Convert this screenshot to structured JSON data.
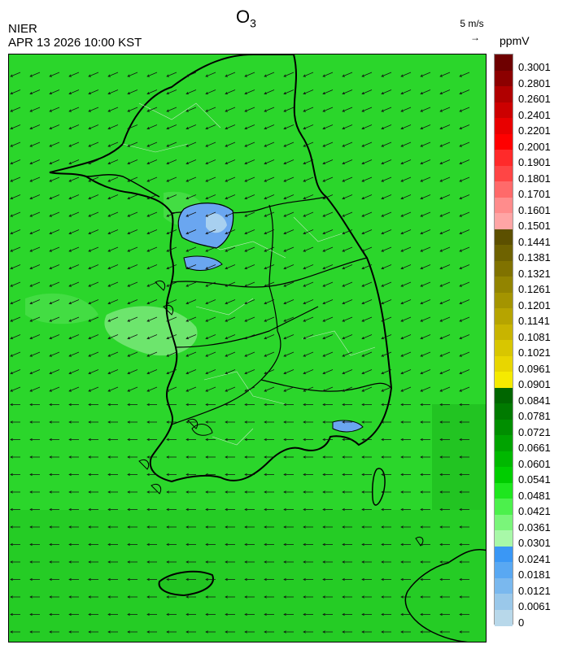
{
  "header": {
    "agency": "NIER",
    "datetime": "APR 13 2026 10:00 KST",
    "title_main": "O",
    "title_sub": "3"
  },
  "vector_key": {
    "label": "5 m/s",
    "arrow": "→"
  },
  "colorbar": {
    "unit": "ppmV",
    "levels": [
      {
        "label": "0.3001",
        "color": "#6e0000"
      },
      {
        "label": "0.2801",
        "color": "#8c0000"
      },
      {
        "label": "0.2601",
        "color": "#b00000"
      },
      {
        "label": "0.2401",
        "color": "#cc0000"
      },
      {
        "label": "0.2201",
        "color": "#e80000"
      },
      {
        "label": "0.2001",
        "color": "#ff0000"
      },
      {
        "label": "0.1901",
        "color": "#ff2a2a"
      },
      {
        "label": "0.1801",
        "color": "#ff4545"
      },
      {
        "label": "0.1701",
        "color": "#ff6a6a"
      },
      {
        "label": "0.1601",
        "color": "#ff8c8c"
      },
      {
        "label": "0.1501",
        "color": "#ffa5a5"
      },
      {
        "label": "0.1441",
        "color": "#5c5000"
      },
      {
        "label": "0.1381",
        "color": "#6e6200"
      },
      {
        "label": "0.1321",
        "color": "#807200"
      },
      {
        "label": "0.1261",
        "color": "#928400"
      },
      {
        "label": "0.1201",
        "color": "#a49400"
      },
      {
        "label": "0.1141",
        "color": "#b6a400"
      },
      {
        "label": "0.1081",
        "color": "#c8b400"
      },
      {
        "label": "0.1021",
        "color": "#d8c600"
      },
      {
        "label": "0.0961",
        "color": "#e8d600"
      },
      {
        "label": "0.0901",
        "color": "#f5ea00"
      },
      {
        "label": "0.0841",
        "color": "#006600"
      },
      {
        "label": "0.0781",
        "color": "#007a00"
      },
      {
        "label": "0.0721",
        "color": "#008e00"
      },
      {
        "label": "0.0661",
        "color": "#00a300"
      },
      {
        "label": "0.0601",
        "color": "#00b800"
      },
      {
        "label": "0.0541",
        "color": "#00cd00"
      },
      {
        "label": "0.0481",
        "color": "#1ee61e"
      },
      {
        "label": "0.0421",
        "color": "#4cf04c"
      },
      {
        "label": "0.0361",
        "color": "#7af57a"
      },
      {
        "label": "0.0301",
        "color": "#a8f8a8"
      },
      {
        "label": "0.0241",
        "color": "#3a97f5"
      },
      {
        "label": "0.0181",
        "color": "#59a8f2"
      },
      {
        "label": "0.0121",
        "color": "#7ab8ee"
      },
      {
        "label": "0.0061",
        "color": "#9ac8ea"
      },
      {
        "label": "0",
        "color": "#b8d8ea"
      }
    ]
  },
  "map": {
    "field_color": "#2bd62b",
    "land_color_dark": "#22c422",
    "low_ozone_color": "#6aa6f0",
    "light_zone_color": "#8ee88e",
    "wind_direction": "from east-northeast"
  }
}
